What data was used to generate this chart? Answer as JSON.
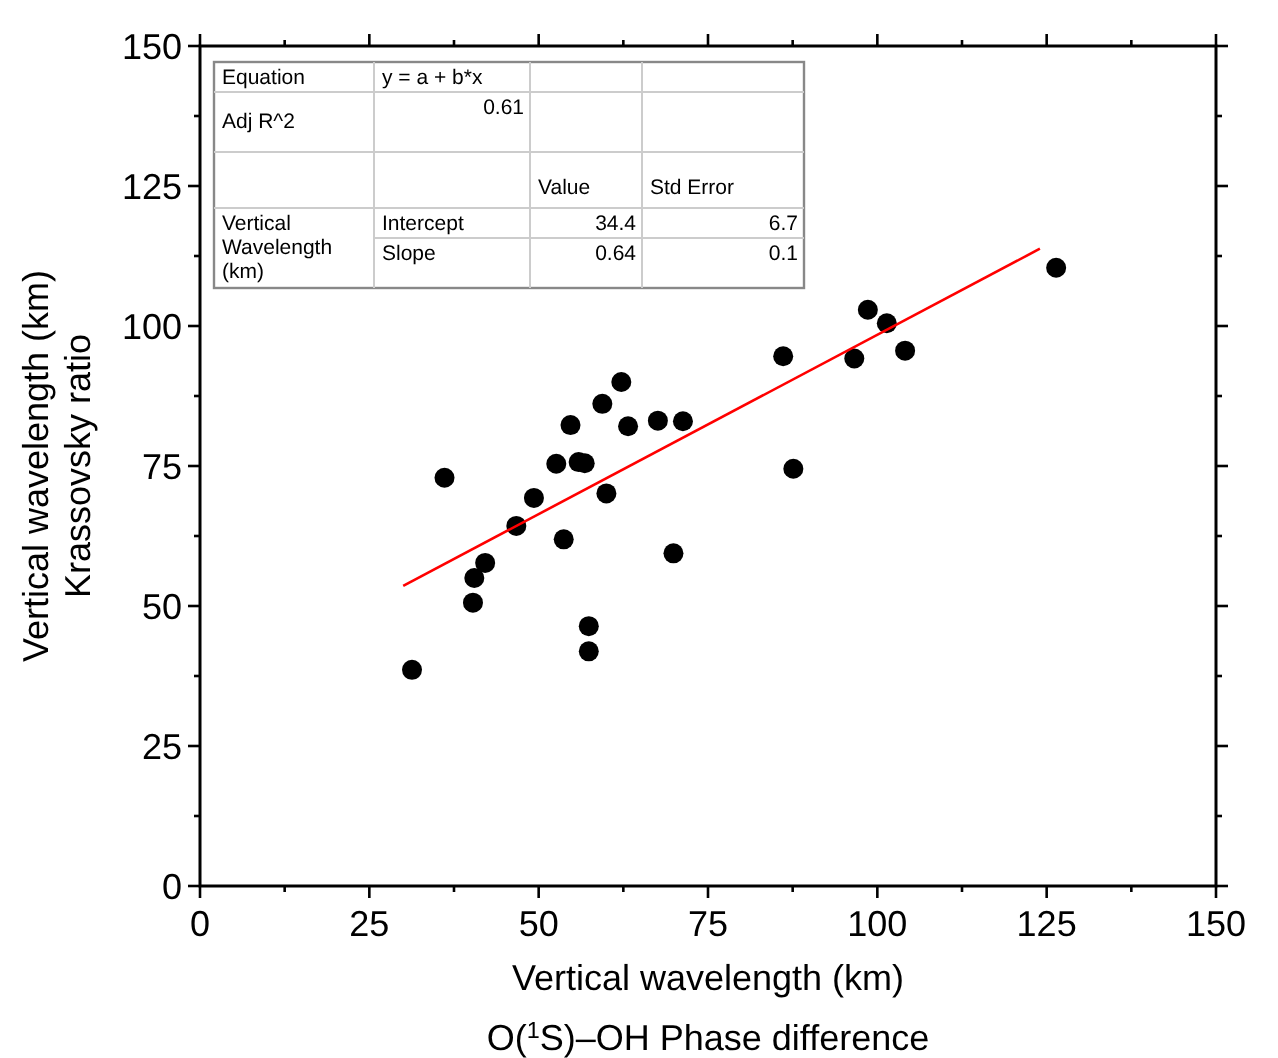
{
  "chart_data": {
    "type": "scatter",
    "xlabel": "Vertical wavelength (km)\nO($^{1}$S)–OH Phase difference",
    "ylabel": "Vertical wavelength (km)\nKrassovsky ratio",
    "xlim": [
      0,
      150
    ],
    "ylim": [
      0,
      150
    ],
    "xticks": [
      0,
      {
        "value": 12.5,
        "label": null
      },
      25,
      {
        "value": 37.5,
        "label": null
      },
      50,
      {
        "value": 62.5,
        "label": null
      },
      75,
      {
        "value": 87.5,
        "label": null
      },
      100,
      {
        "value": 112.5,
        "label": null
      },
      125,
      {
        "value": 137.5,
        "label": null
      },
      150
    ],
    "yticks": [
      0,
      {
        "value": 12.5,
        "label": null
      },
      25,
      {
        "value": 37.5,
        "label": null
      },
      50,
      {
        "value": 62.5,
        "label": null
      },
      75,
      {
        "value": 87.5,
        "label": null
      },
      100,
      {
        "value": 112.5,
        "label": null
      },
      125,
      {
        "value": 137.5,
        "label": null
      },
      150
    ],
    "grid": false,
    "series": [
      {
        "color": "#000000",
        "marker": "circle",
        "x": [
          31.3,
          36.1,
          40.3,
          40.5,
          42.1,
          46.7,
          49.3,
          52.6,
          54.7,
          53.7,
          55.9,
          56.8,
          57.4,
          57.4,
          59.4,
          60.0,
          62.2,
          63.2,
          67.6,
          69.9,
          71.3,
          86.1,
          87.6,
          96.6,
          98.6,
          101.4,
          104.1,
          126.4
        ],
        "values": [
          38.6,
          72.9,
          50.6,
          55.0,
          57.7,
          64.3,
          69.3,
          75.4,
          82.3,
          61.9,
          75.7,
          75.5,
          46.4,
          41.9,
          86.1,
          70.1,
          90.0,
          82.1,
          83.1,
          59.4,
          83.0,
          94.6,
          74.5,
          94.2,
          102.9,
          100.5,
          95.6,
          110.4
        ]
      },
      {
        "type": "line",
        "color": "#ff0000",
        "line_style": "solid",
        "marker": "none",
        "x": [
          30,
          124
        ],
        "values": [
          53.6,
          113.8
        ]
      }
    ],
    "annotations": [
      "Equation",
      "y = a + b*x",
      "Adj R^2",
      "0.61",
      "Value",
      "Std Error",
      "Vertical\nWavelength\n(km)",
      "Intercept",
      "34.4",
      "6.7",
      "Slope",
      "0.64",
      "0.1"
    ]
  }
}
